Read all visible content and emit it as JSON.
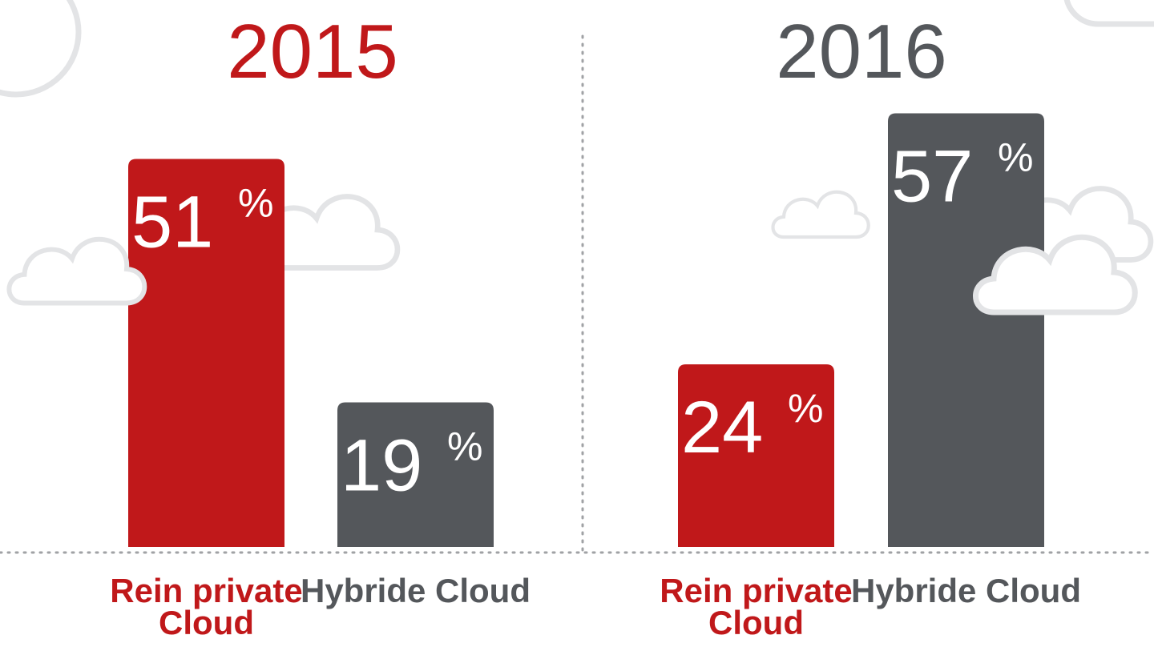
{
  "chart_data": [
    {
      "type": "bar",
      "title": "2015",
      "title_color": "#c0181a",
      "unit": "%",
      "categories": [
        "Rein private Cloud",
        "Hybride Cloud"
      ],
      "values": [
        51,
        19
      ],
      "colors": [
        "#c0181a",
        "#54575b"
      ]
    },
    {
      "type": "bar",
      "title": "2016",
      "title_color": "#54575b",
      "unit": "%",
      "categories": [
        "Rein private Cloud",
        "Hybride Cloud"
      ],
      "values": [
        24,
        57
      ],
      "colors": [
        "#c0181a",
        "#54575b"
      ]
    }
  ]
}
